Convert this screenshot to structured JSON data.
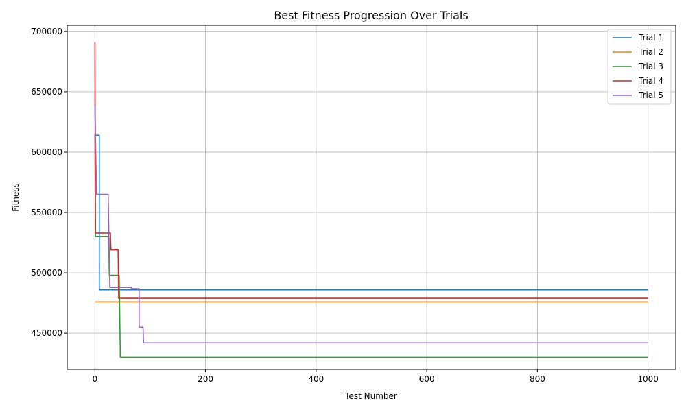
{
  "chart_data": {
    "type": "line",
    "title": "Best Fitness Progression Over Trials",
    "xlabel": "Test Number",
    "ylabel": "Fitness",
    "xlim": [
      -50,
      1050
    ],
    "ylim": [
      420000,
      705000
    ],
    "x_ticks": [
      0,
      200,
      400,
      600,
      800,
      1000
    ],
    "y_ticks": [
      450000,
      500000,
      550000,
      600000,
      650000,
      700000
    ],
    "grid": true,
    "legend_position": "top-right",
    "series": [
      {
        "name": "Trial 1",
        "color": "#1f77b4",
        "points": [
          [
            0,
            648000
          ],
          [
            1,
            614000
          ],
          [
            8,
            614000
          ],
          [
            8,
            486000
          ],
          [
            1000,
            486000
          ]
        ]
      },
      {
        "name": "Trial 2",
        "color": "#ff7f0e",
        "points": [
          [
            0,
            476000
          ],
          [
            1000,
            476000
          ]
        ]
      },
      {
        "name": "Trial 3",
        "color": "#2ca02c",
        "points": [
          [
            0,
            615000
          ],
          [
            1,
            530000
          ],
          [
            25,
            530000
          ],
          [
            26,
            498000
          ],
          [
            44,
            498000
          ],
          [
            46,
            430000
          ],
          [
            1000,
            430000
          ]
        ]
      },
      {
        "name": "Trial 4",
        "color": "#d62728",
        "points": [
          [
            0,
            691000
          ],
          [
            1,
            533000
          ],
          [
            28,
            533000
          ],
          [
            29,
            519000
          ],
          [
            42,
            519000
          ],
          [
            43,
            479000
          ],
          [
            1000,
            479000
          ]
        ]
      },
      {
        "name": "Trial 5",
        "color": "#9467bd",
        "points": [
          [
            0,
            639000
          ],
          [
            3,
            565000
          ],
          [
            24,
            565000
          ],
          [
            27,
            488000
          ],
          [
            66,
            488000
          ],
          [
            66,
            487000
          ],
          [
            80,
            487000
          ],
          [
            80,
            455000
          ],
          [
            87,
            455000
          ],
          [
            88,
            442000
          ],
          [
            1000,
            442000
          ]
        ]
      }
    ]
  }
}
